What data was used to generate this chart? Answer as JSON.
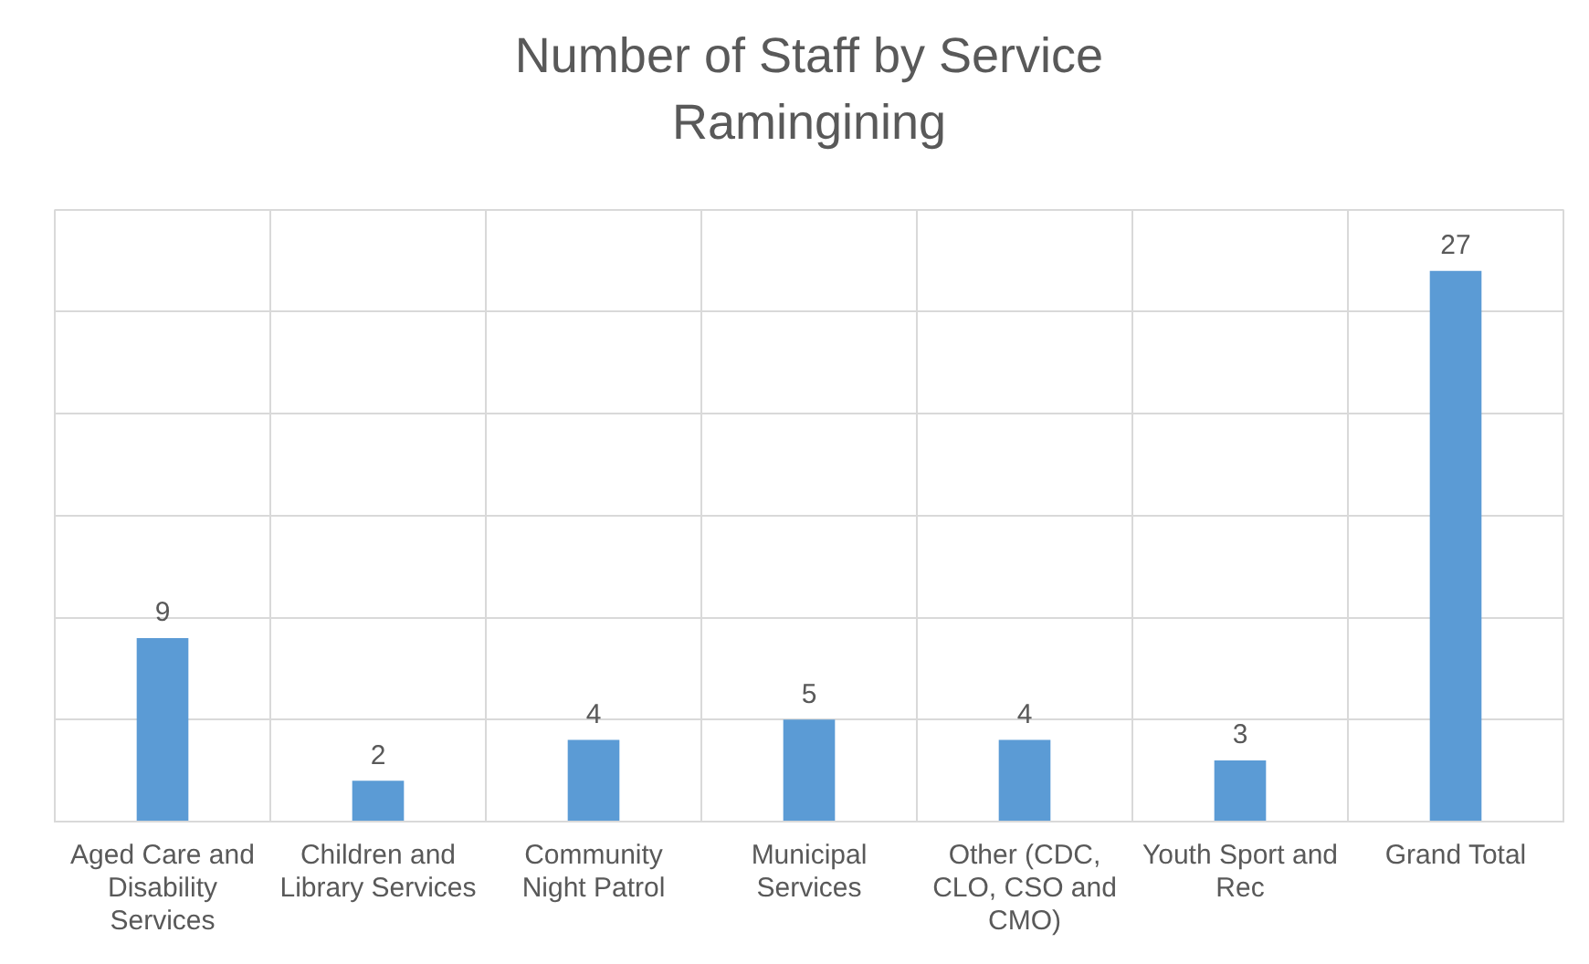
{
  "chart_data": {
    "type": "bar",
    "title": "Number of Staff by Service",
    "subtitle": "Ramingining",
    "categories": [
      "Aged Care and Disability Services",
      "Children and Library Services",
      "Community Night Patrol",
      "Municipal Services",
      "Other (CDC, CLO, CSO and CMO)",
      "Youth Sport and Rec",
      "Grand Total"
    ],
    "values": [
      9,
      2,
      4,
      5,
      4,
      3,
      27
    ],
    "color": "#5b9bd5",
    "data_labels": true,
    "ylim": [
      0,
      30
    ],
    "yticks": [
      {
        "value": 0,
        "label": null
      },
      {
        "value": 5,
        "label": null
      },
      {
        "value": 10,
        "label": null
      },
      {
        "value": 15,
        "label": null
      },
      {
        "value": 20,
        "label": null
      },
      {
        "value": 25,
        "label": null
      },
      {
        "value": 30,
        "label": null
      }
    ],
    "tick_labels": "x",
    "grid": true,
    "legend": false
  }
}
